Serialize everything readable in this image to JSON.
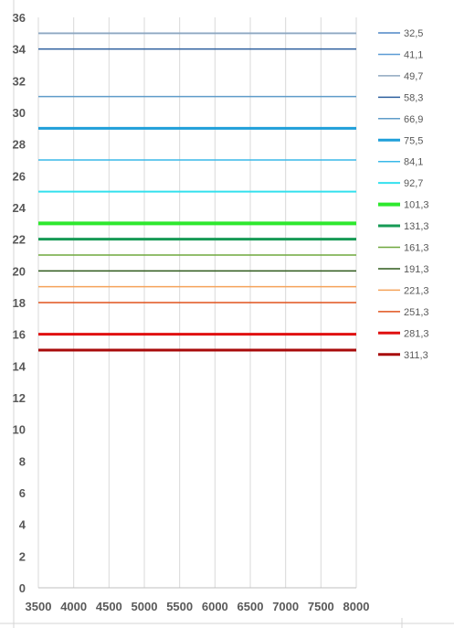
{
  "chart_data": {
    "type": "line",
    "title": "",
    "xlabel": "",
    "ylabel": "",
    "xlim": [
      3500,
      8000
    ],
    "ylim": [
      0,
      36
    ],
    "x_ticks": [
      3500,
      4000,
      4500,
      5000,
      5500,
      6000,
      6500,
      7000,
      7500,
      8000
    ],
    "y_ticks": [
      0,
      2,
      4,
      6,
      8,
      10,
      12,
      14,
      16,
      18,
      20,
      22,
      24,
      26,
      28,
      30,
      32,
      34,
      36
    ],
    "x_tick_labels": [
      "3500",
      "4000",
      "4500",
      "5000",
      "5500",
      "6000",
      "6500",
      "7000",
      "7500",
      "8000"
    ],
    "y_tick_labels": [
      "0",
      "2",
      "4",
      "6",
      "8",
      "10",
      "12",
      "14",
      "16",
      "18",
      "20",
      "22",
      "24",
      "26",
      "28",
      "30",
      "32",
      "34",
      "36"
    ],
    "grid": "vertical",
    "legend_position": "right",
    "series": [
      {
        "name": "32,5",
        "x": [
          3500,
          8000
        ],
        "y": [
          35,
          35
        ],
        "color": "#4f86c6",
        "width": 1.5
      },
      {
        "name": "41,1",
        "x": [
          3500,
          8000
        ],
        "y": [
          35,
          35
        ],
        "color": "#5b9bd5",
        "width": 1.5
      },
      {
        "name": "49,7",
        "x": [
          3500,
          8000
        ],
        "y": [
          35,
          35
        ],
        "color": "#8fa7bf",
        "width": 1.5
      },
      {
        "name": "58,3",
        "x": [
          3500,
          8000
        ],
        "y": [
          34,
          34
        ],
        "color": "#2e5f9e",
        "width": 1.5
      },
      {
        "name": "66,9",
        "x": [
          3500,
          8000
        ],
        "y": [
          31,
          31
        ],
        "color": "#5f9cc9",
        "width": 1.5
      },
      {
        "name": "75,5",
        "x": [
          3500,
          8000
        ],
        "y": [
          29,
          29
        ],
        "color": "#1f9fd9",
        "width": 3
      },
      {
        "name": "84,1",
        "x": [
          3500,
          8000
        ],
        "y": [
          27,
          27
        ],
        "color": "#3ab8e8",
        "width": 1.5
      },
      {
        "name": "92,7",
        "x": [
          3500,
          8000
        ],
        "y": [
          25,
          25
        ],
        "color": "#33e0ee",
        "width": 2
      },
      {
        "name": "101,3",
        "x": [
          3500,
          8000
        ],
        "y": [
          23,
          23
        ],
        "color": "#2ee82e",
        "width": 4
      },
      {
        "name": "131,3",
        "x": [
          3500,
          8000
        ],
        "y": [
          22,
          22
        ],
        "color": "#169a55",
        "width": 3
      },
      {
        "name": "161,3",
        "x": [
          3500,
          8000
        ],
        "y": [
          21,
          21
        ],
        "color": "#6fa83d",
        "width": 1.5
      },
      {
        "name": "191,3",
        "x": [
          3500,
          8000
        ],
        "y": [
          20,
          20
        ],
        "color": "#2f5a1c",
        "width": 1.5
      },
      {
        "name": "221,3",
        "x": [
          3500,
          8000
        ],
        "y": [
          19,
          19
        ],
        "color": "#f5a35a",
        "width": 1.5
      },
      {
        "name": "251,3",
        "x": [
          3500,
          8000
        ],
        "y": [
          18,
          18
        ],
        "color": "#e0531d",
        "width": 1.5
      },
      {
        "name": "281,3",
        "x": [
          3500,
          8000
        ],
        "y": [
          16,
          16
        ],
        "color": "#e01010",
        "width": 3
      },
      {
        "name": "311,3",
        "x": [
          3500,
          8000
        ],
        "y": [
          15,
          15
        ],
        "color": "#a80a0a",
        "width": 3
      }
    ]
  }
}
